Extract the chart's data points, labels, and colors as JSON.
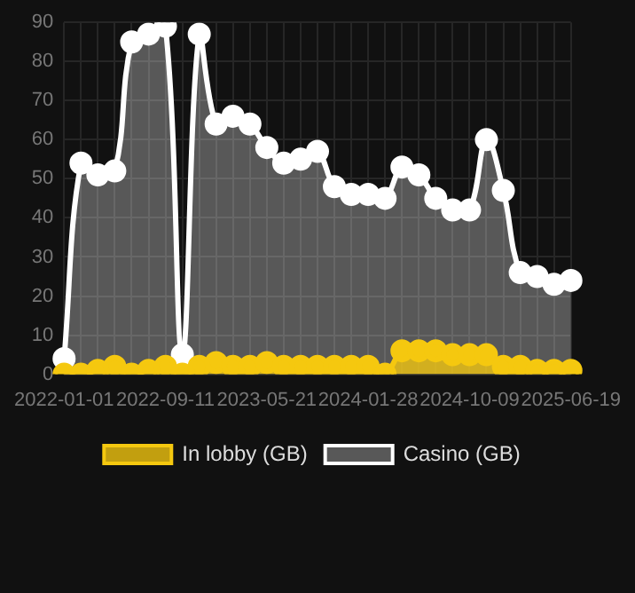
{
  "chart_data": {
    "type": "area",
    "categories": [
      "2022-01-01",
      null,
      null,
      null,
      null,
      null,
      "2022-09-11",
      null,
      null,
      null,
      null,
      null,
      "2023-05-21",
      null,
      null,
      null,
      null,
      null,
      "2024-01-28",
      null,
      null,
      null,
      null,
      null,
      "2024-10-09",
      null,
      null,
      null,
      null,
      null,
      "2025-06-19"
    ],
    "series": [
      {
        "name": "In lobby (GB)",
        "color": "#f5c80f",
        "values": [
          0,
          0,
          1,
          2,
          0,
          1,
          2,
          0,
          2,
          3,
          2,
          2,
          3,
          2,
          2,
          2,
          2,
          2,
          2,
          0,
          6,
          6,
          6,
          5,
          5,
          5,
          2,
          2,
          1,
          1,
          1
        ]
      },
      {
        "name": "Casino (GB)",
        "color": "#ffffff",
        "values": [
          4,
          54,
          51,
          52,
          85,
          87,
          89,
          5,
          87,
          64,
          66,
          64,
          58,
          54,
          55,
          57,
          48,
          46,
          46,
          45,
          53,
          51,
          45,
          42,
          42,
          60,
          47,
          26,
          25,
          23,
          24
        ]
      }
    ],
    "ylim": [
      0,
      90
    ],
    "yticks": [
      0,
      10,
      20,
      30,
      40,
      50,
      60,
      70,
      80,
      90
    ],
    "grid": true,
    "legend": "bottom",
    "marker": "circle"
  }
}
